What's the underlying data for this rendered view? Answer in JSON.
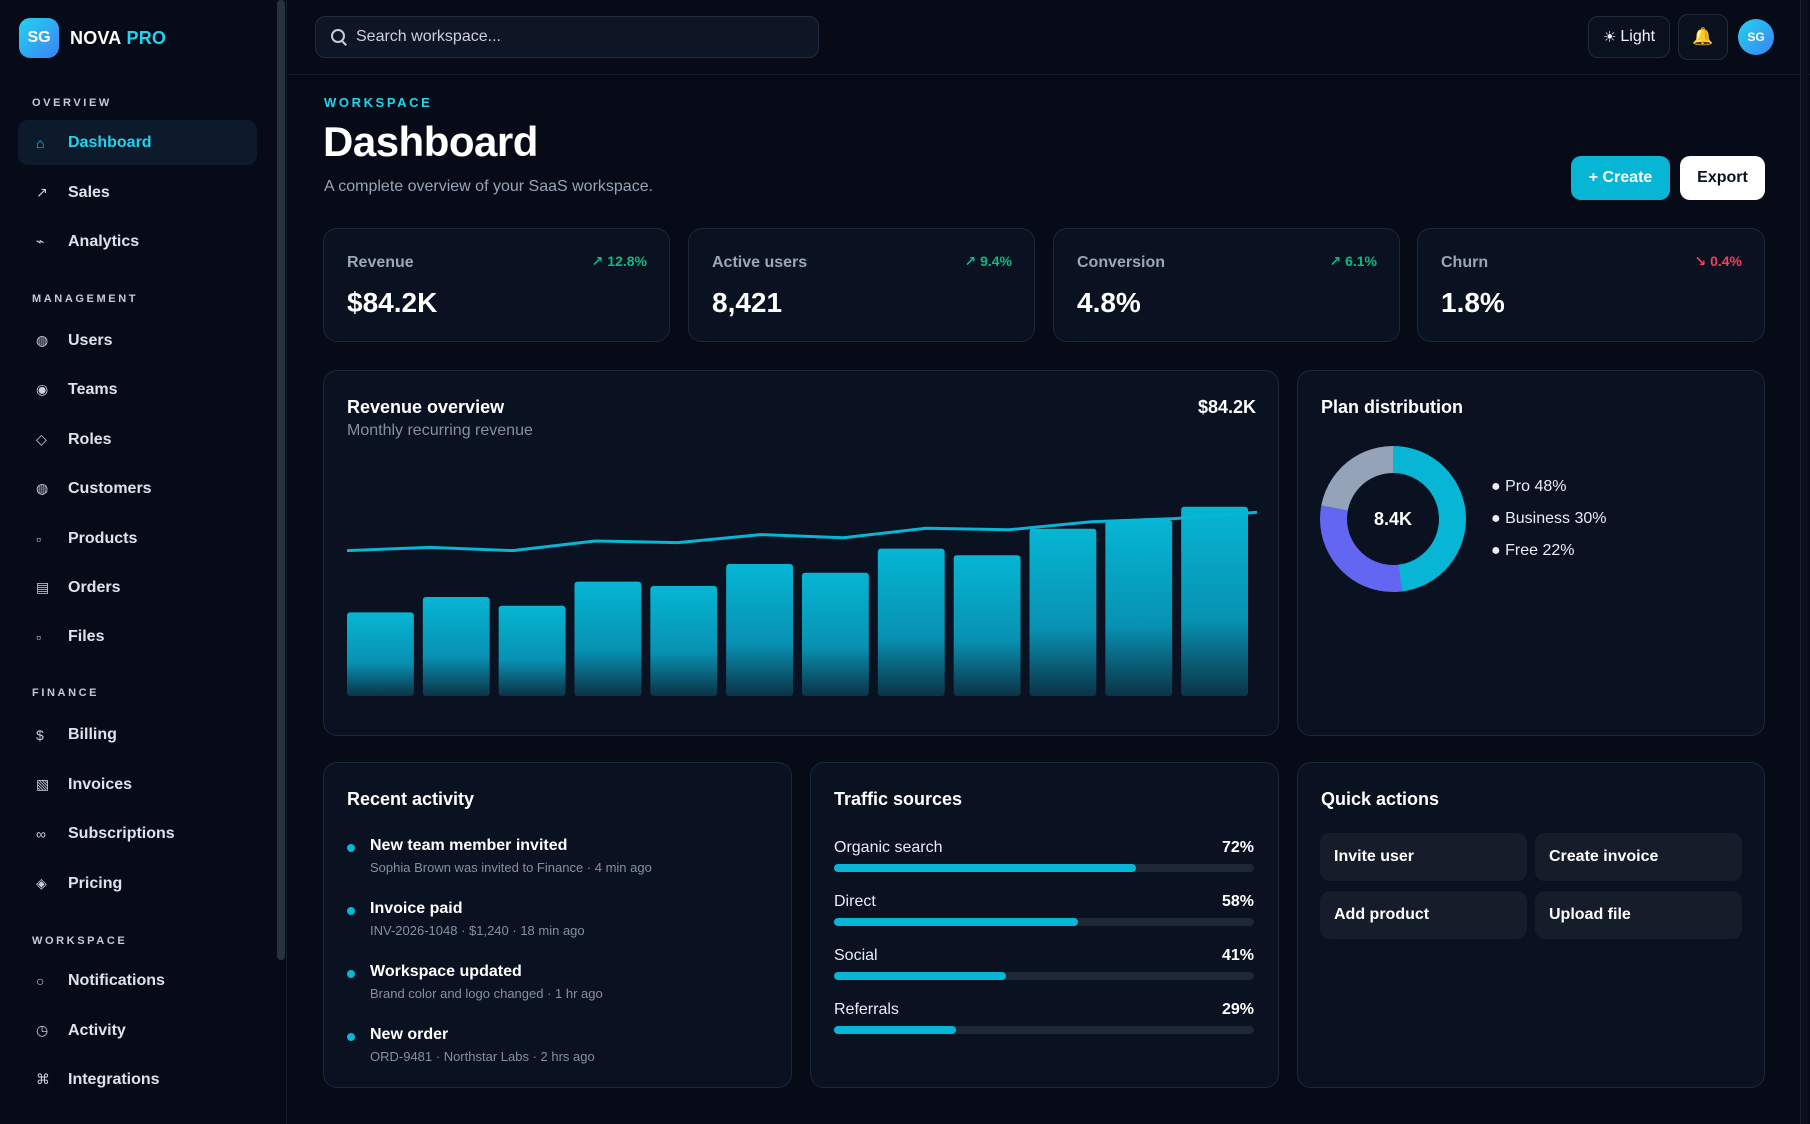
{
  "brand": {
    "logo": "SG",
    "name": "NOVA",
    "accent": "PRO"
  },
  "sidebar": {
    "sections": [
      {
        "title": "OVERVIEW",
        "items": [
          {
            "icon": "⌂",
            "label": "Dashboard",
            "active": true
          },
          {
            "icon": "↗",
            "label": "Sales"
          },
          {
            "icon": "⌁",
            "label": "Analytics"
          }
        ]
      },
      {
        "title": "MANAGEMENT",
        "items": [
          {
            "icon": "◍",
            "label": "Users"
          },
          {
            "icon": "◉",
            "label": "Teams"
          },
          {
            "icon": "◇",
            "label": "Roles"
          },
          {
            "icon": "◍",
            "label": "Customers"
          },
          {
            "icon": "▫",
            "label": "Products"
          },
          {
            "icon": "▤",
            "label": "Orders"
          },
          {
            "icon": "▫",
            "label": "Files"
          }
        ]
      },
      {
        "title": "FINANCE",
        "items": [
          {
            "icon": "$",
            "label": "Billing"
          },
          {
            "icon": "▧",
            "label": "Invoices"
          },
          {
            "icon": "∞",
            "label": "Subscriptions"
          },
          {
            "icon": "◈",
            "label": "Pricing"
          }
        ]
      },
      {
        "title": "WORKSPACE",
        "items": [
          {
            "icon": "○",
            "label": "Notifications"
          },
          {
            "icon": "◷",
            "label": "Activity"
          },
          {
            "icon": "⌘",
            "label": "Integrations"
          }
        ]
      }
    ]
  },
  "topbar": {
    "search_placeholder": "Search workspace...",
    "theme_icon": "☀",
    "theme_label": "Light",
    "bell_icon": "🔔",
    "avatar": "SG"
  },
  "page": {
    "eyebrow": "WORKSPACE",
    "title": "Dashboard",
    "subtitle": "A complete overview of your SaaS workspace.",
    "create_label": "+ Create",
    "export_label": "Export"
  },
  "kpis": [
    {
      "label": "Revenue",
      "value": "$84.2K",
      "delta": "↗ 12.8%",
      "trend": "up"
    },
    {
      "label": "Active users",
      "value": "8,421",
      "delta": "↗ 9.4%",
      "trend": "up"
    },
    {
      "label": "Conversion",
      "value": "4.8%",
      "delta": "↗ 6.1%",
      "trend": "up"
    },
    {
      "label": "Churn",
      "value": "1.8%",
      "delta": "↘ 0.4%",
      "trend": "down"
    }
  ],
  "revenue": {
    "title": "Revenue overview",
    "subtitle": "Monthly recurring revenue",
    "total": "$84.2K"
  },
  "chart_data": {
    "type": "bar",
    "title": "Revenue overview",
    "subtitle": "Monthly recurring revenue",
    "values": [
      38,
      45,
      41,
      52,
      50,
      60,
      56,
      67,
      64,
      76,
      80,
      86
    ],
    "line": [
      44,
      46,
      44,
      50,
      49,
      54,
      52,
      58,
      57,
      62,
      64,
      68
    ],
    "ylim": [
      0,
      100
    ],
    "grid": false,
    "colors": {
      "bar": "#06b6d4",
      "line": "#06b6d4"
    }
  },
  "plan": {
    "title": "Plan distribution",
    "center": "8.4K",
    "legend": [
      "● Pro 48%",
      "● Business 30%",
      "● Free 22%"
    ],
    "shares": [
      48,
      30,
      22
    ],
    "colors": [
      "#06b6d4",
      "#6366f1",
      "#94a3b8"
    ]
  },
  "activity": {
    "title": "Recent activity",
    "items": [
      {
        "title": "New team member invited",
        "meta": "Sophia Brown was invited to Finance · 4 min ago"
      },
      {
        "title": "Invoice paid",
        "meta": "INV-2026-1048 · $1,240 · 18 min ago"
      },
      {
        "title": "Workspace updated",
        "meta": "Brand color and logo changed · 1 hr ago"
      },
      {
        "title": "New order",
        "meta": "ORD-9481 · Northstar Labs · 2 hrs ago"
      }
    ]
  },
  "traffic": {
    "title": "Traffic sources",
    "items": [
      {
        "label": "Organic search",
        "pct": "72%",
        "value": 72
      },
      {
        "label": "Direct",
        "pct": "58%",
        "value": 58
      },
      {
        "label": "Social",
        "pct": "41%",
        "value": 41
      },
      {
        "label": "Referrals",
        "pct": "29%",
        "value": 29
      }
    ]
  },
  "quick": {
    "title": "Quick actions",
    "items": [
      "Invite user",
      "Create invoice",
      "Add product",
      "Upload file"
    ]
  }
}
